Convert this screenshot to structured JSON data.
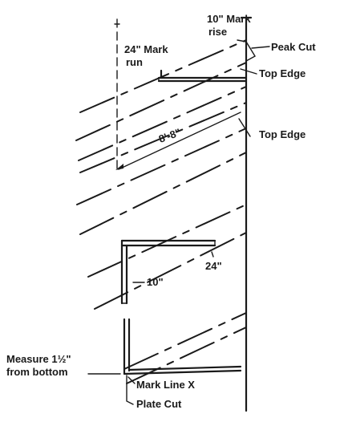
{
  "labels": {
    "ten_mark": "10\" Mark",
    "rise": "rise",
    "twentyfour_mark": "24\" Mark",
    "run": "run",
    "peak_cut": "Peak Cut",
    "top_edge_upper": "Top Edge",
    "top_edge_lower": "Top Edge",
    "length": "8'-8\"",
    "twentyfour": "24\"",
    "ten": "10\"",
    "measure_line1": "Measure 1½\"",
    "measure_line2": "from bottom",
    "mark_line_x": "Mark Line X",
    "plate_cut": "Plate Cut"
  }
}
